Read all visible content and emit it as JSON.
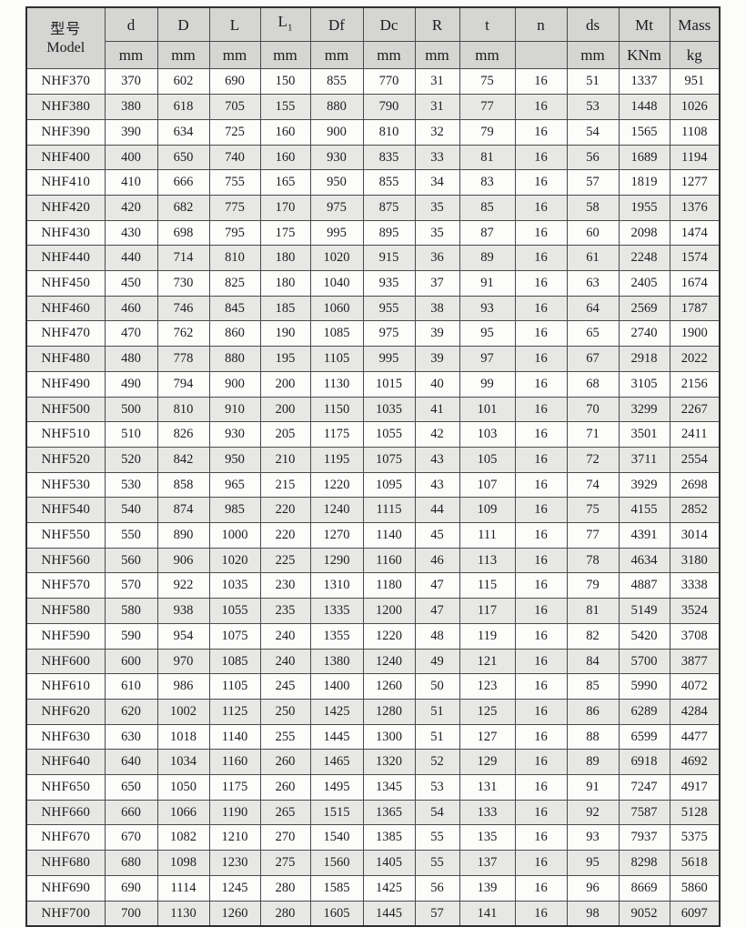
{
  "table": {
    "model_header": {
      "zh": "型号",
      "en": "Model"
    },
    "columns": [
      {
        "label": "d",
        "label_sub": "",
        "unit": "mm"
      },
      {
        "label": "D",
        "label_sub": "",
        "unit": "mm"
      },
      {
        "label": "L",
        "label_sub": "",
        "unit": "mm"
      },
      {
        "label": "L",
        "label_sub": "1",
        "unit": "mm"
      },
      {
        "label": "Df",
        "label_sub": "",
        "unit": "mm"
      },
      {
        "label": "Dc",
        "label_sub": "",
        "unit": "mm"
      },
      {
        "label": "R",
        "label_sub": "",
        "unit": "mm"
      },
      {
        "label": "t",
        "label_sub": "",
        "unit": "mm"
      },
      {
        "label": "n",
        "label_sub": "",
        "unit": ""
      },
      {
        "label": "ds",
        "label_sub": "",
        "unit": "mm"
      },
      {
        "label": "Mt",
        "label_sub": "",
        "unit": "KNm"
      },
      {
        "label": "Mass",
        "label_sub": "",
        "unit": "kg"
      }
    ],
    "rows": [
      {
        "model": "NHF370",
        "values": [
          370,
          602,
          690,
          150,
          855,
          770,
          31,
          75,
          16,
          51,
          1337,
          951
        ]
      },
      {
        "model": "NHF380",
        "values": [
          380,
          618,
          705,
          155,
          880,
          790,
          31,
          77,
          16,
          53,
          1448,
          1026
        ]
      },
      {
        "model": "NHF390",
        "values": [
          390,
          634,
          725,
          160,
          900,
          810,
          32,
          79,
          16,
          54,
          1565,
          1108
        ]
      },
      {
        "model": "NHF400",
        "values": [
          400,
          650,
          740,
          160,
          930,
          835,
          33,
          81,
          16,
          56,
          1689,
          1194
        ]
      },
      {
        "model": "NHF410",
        "values": [
          410,
          666,
          755,
          165,
          950,
          855,
          34,
          83,
          16,
          57,
          1819,
          1277
        ]
      },
      {
        "model": "NHF420",
        "values": [
          420,
          682,
          775,
          170,
          975,
          875,
          35,
          85,
          16,
          58,
          1955,
          1376
        ]
      },
      {
        "model": "NHF430",
        "values": [
          430,
          698,
          795,
          175,
          995,
          895,
          35,
          87,
          16,
          60,
          2098,
          1474
        ]
      },
      {
        "model": "NHF440",
        "values": [
          440,
          714,
          810,
          180,
          1020,
          915,
          36,
          89,
          16,
          61,
          2248,
          1574
        ]
      },
      {
        "model": "NHF450",
        "values": [
          450,
          730,
          825,
          180,
          1040,
          935,
          37,
          91,
          16,
          63,
          2405,
          1674
        ]
      },
      {
        "model": "NHF460",
        "values": [
          460,
          746,
          845,
          185,
          1060,
          955,
          38,
          93,
          16,
          64,
          2569,
          1787
        ]
      },
      {
        "model": "NHF470",
        "values": [
          470,
          762,
          860,
          190,
          1085,
          975,
          39,
          95,
          16,
          65,
          2740,
          1900
        ]
      },
      {
        "model": "NHF480",
        "values": [
          480,
          778,
          880,
          195,
          1105,
          995,
          39,
          97,
          16,
          67,
          2918,
          2022
        ]
      },
      {
        "model": "NHF490",
        "values": [
          490,
          794,
          900,
          200,
          1130,
          1015,
          40,
          99,
          16,
          68,
          3105,
          2156
        ]
      },
      {
        "model": "NHF500",
        "values": [
          500,
          810,
          910,
          200,
          1150,
          1035,
          41,
          101,
          16,
          70,
          3299,
          2267
        ]
      },
      {
        "model": "NHF510",
        "values": [
          510,
          826,
          930,
          205,
          1175,
          1055,
          42,
          103,
          16,
          71,
          3501,
          2411
        ]
      },
      {
        "model": "NHF520",
        "values": [
          520,
          842,
          950,
          210,
          1195,
          1075,
          43,
          105,
          16,
          72,
          3711,
          2554
        ]
      },
      {
        "model": "NHF530",
        "values": [
          530,
          858,
          965,
          215,
          1220,
          1095,
          43,
          107,
          16,
          74,
          3929,
          2698
        ]
      },
      {
        "model": "NHF540",
        "values": [
          540,
          874,
          985,
          220,
          1240,
          1115,
          44,
          109,
          16,
          75,
          4155,
          2852
        ]
      },
      {
        "model": "NHF550",
        "values": [
          550,
          890,
          1000,
          220,
          1270,
          1140,
          45,
          111,
          16,
          77,
          4391,
          3014
        ]
      },
      {
        "model": "NHF560",
        "values": [
          560,
          906,
          1020,
          225,
          1290,
          1160,
          46,
          113,
          16,
          78,
          4634,
          3180
        ]
      },
      {
        "model": "NHF570",
        "values": [
          570,
          922,
          1035,
          230,
          1310,
          1180,
          47,
          115,
          16,
          79,
          4887,
          3338
        ]
      },
      {
        "model": "NHF580",
        "values": [
          580,
          938,
          1055,
          235,
          1335,
          1200,
          47,
          117,
          16,
          81,
          5149,
          3524
        ]
      },
      {
        "model": "NHF590",
        "values": [
          590,
          954,
          1075,
          240,
          1355,
          1220,
          48,
          119,
          16,
          82,
          5420,
          3708
        ]
      },
      {
        "model": "NHF600",
        "values": [
          600,
          970,
          1085,
          240,
          1380,
          1240,
          49,
          121,
          16,
          84,
          5700,
          3877
        ]
      },
      {
        "model": "NHF610",
        "values": [
          610,
          986,
          1105,
          245,
          1400,
          1260,
          50,
          123,
          16,
          85,
          5990,
          4072
        ]
      },
      {
        "model": "NHF620",
        "values": [
          620,
          1002,
          1125,
          250,
          1425,
          1280,
          51,
          125,
          16,
          86,
          6289,
          4284
        ]
      },
      {
        "model": "NHF630",
        "values": [
          630,
          1018,
          1140,
          255,
          1445,
          1300,
          51,
          127,
          16,
          88,
          6599,
          4477
        ]
      },
      {
        "model": "NHF640",
        "values": [
          640,
          1034,
          1160,
          260,
          1465,
          1320,
          52,
          129,
          16,
          89,
          6918,
          4692
        ]
      },
      {
        "model": "NHF650",
        "values": [
          650,
          1050,
          1175,
          260,
          1495,
          1345,
          53,
          131,
          16,
          91,
          7247,
          4917
        ]
      },
      {
        "model": "NHF660",
        "values": [
          660,
          1066,
          1190,
          265,
          1515,
          1365,
          54,
          133,
          16,
          92,
          7587,
          5128
        ]
      },
      {
        "model": "NHF670",
        "values": [
          670,
          1082,
          1210,
          270,
          1540,
          1385,
          55,
          135,
          16,
          93,
          7937,
          5375
        ]
      },
      {
        "model": "NHF680",
        "values": [
          680,
          1098,
          1230,
          275,
          1560,
          1405,
          55,
          137,
          16,
          95,
          8298,
          5618
        ]
      },
      {
        "model": "NHF690",
        "values": [
          690,
          1114,
          1245,
          280,
          1585,
          1425,
          56,
          139,
          16,
          96,
          8669,
          5860
        ]
      },
      {
        "model": "NHF700",
        "values": [
          700,
          1130,
          1260,
          280,
          1605,
          1445,
          57,
          141,
          16,
          98,
          9052,
          6097
        ]
      }
    ]
  }
}
